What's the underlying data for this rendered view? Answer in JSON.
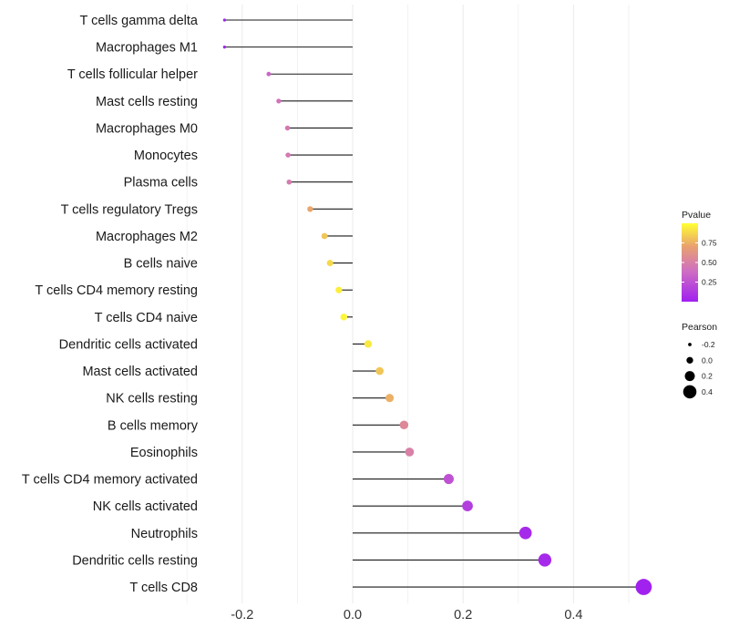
{
  "chart_data": {
    "type": "lollipop",
    "title": "",
    "xlabel": "",
    "ylabel": "",
    "xlim": [
      -0.25,
      0.55
    ],
    "x_ticks": [
      -0.2,
      0.0,
      0.2,
      0.4
    ],
    "x_tick_labels": [
      "-0.2",
      "0.0",
      "0.2",
      "0.4"
    ],
    "grid": true,
    "categories": [
      "T cells gamma delta",
      "Macrophages M1",
      "T cells follicular helper",
      "Mast cells resting",
      "Macrophages M0",
      "Monocytes",
      "Plasma cells",
      "T cells regulatory  Tregs",
      "Macrophages M2",
      "B cells naive",
      "T cells CD4 memory resting",
      "T cells CD4 naive",
      "Dendritic cells activated",
      "Mast cells activated",
      "NK cells resting",
      "B cells memory",
      "Eosinophils",
      "T cells CD4 memory activated",
      "NK cells activated",
      "Neutrophils",
      "Dendritic cells resting",
      "T cells CD8"
    ],
    "pearson": [
      -0.232,
      -0.232,
      -0.152,
      -0.134,
      -0.118,
      -0.117,
      -0.115,
      -0.077,
      -0.051,
      -0.041,
      -0.025,
      -0.016,
      0.028,
      0.049,
      0.067,
      0.093,
      0.103,
      0.174,
      0.208,
      0.313,
      0.348,
      0.527
    ],
    "pvalue": [
      0.02,
      0.02,
      0.35,
      0.42,
      0.45,
      0.45,
      0.46,
      0.72,
      0.82,
      0.88,
      0.95,
      0.97,
      0.93,
      0.82,
      0.75,
      0.55,
      0.5,
      0.25,
      0.15,
      0.05,
      0.05,
      0.01
    ],
    "legend_pvalue": {
      "title": "Pvalue",
      "ticks": [
        0.25,
        0.5,
        0.75
      ],
      "tick_labels": [
        "0.25",
        "0.50",
        "0.75"
      ],
      "range": [
        0.0,
        1.0
      ],
      "colors": [
        "#a020f0",
        "#d070c0",
        "#e8a070",
        "#ffff33"
      ]
    },
    "legend_pearson": {
      "title": "Pearson",
      "values": [
        -0.2,
        0.0,
        0.2,
        0.4
      ],
      "labels": [
        "-0.2",
        "0.0",
        "0.2",
        "0.4"
      ]
    },
    "legend_placement": "right"
  }
}
